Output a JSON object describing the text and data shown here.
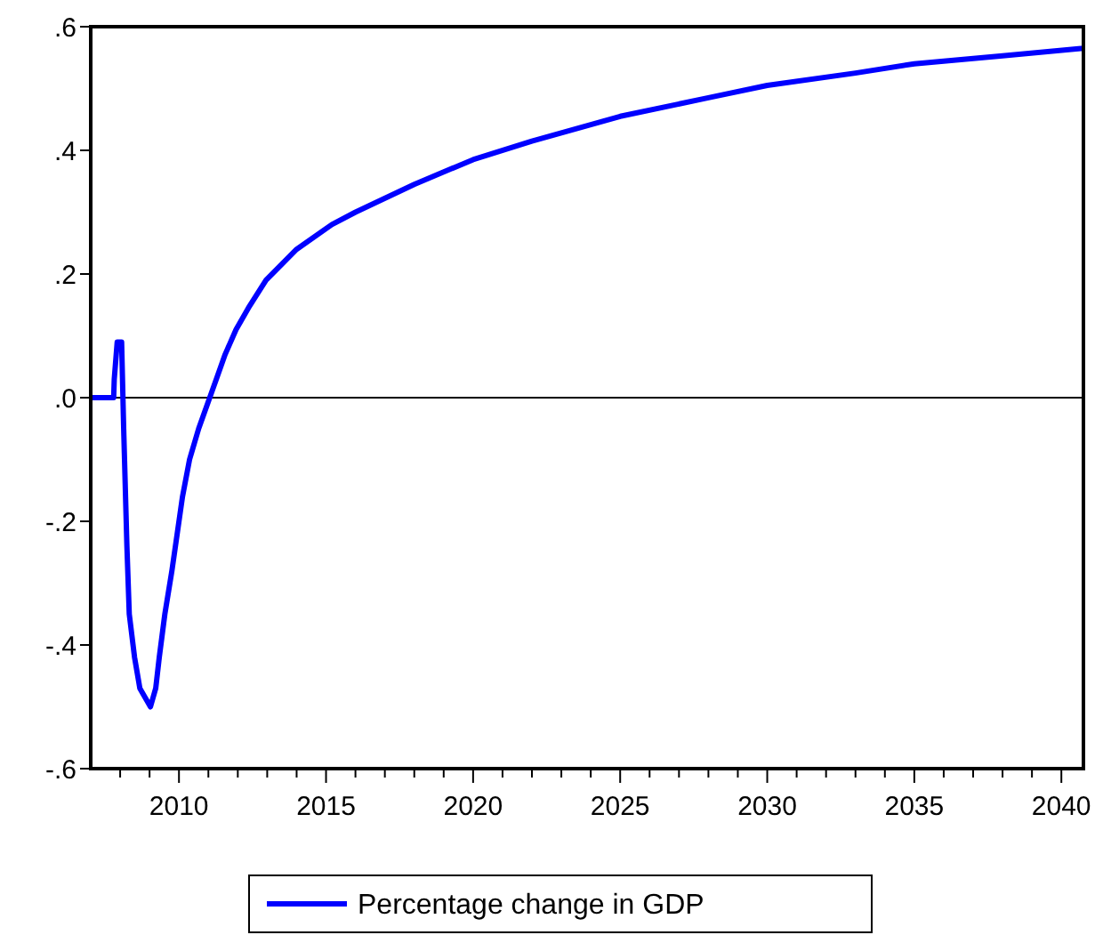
{
  "chart_data": {
    "type": "line",
    "xlim": [
      2007,
      2040.75
    ],
    "ylim": [
      -0.6,
      0.6
    ],
    "xticks": [
      {
        "value": 2008,
        "label": null
      },
      {
        "value": 2009,
        "label": null
      },
      2010,
      {
        "value": 2011,
        "label": null
      },
      {
        "value": 2012,
        "label": null
      },
      {
        "value": 2013,
        "label": null
      },
      {
        "value": 2014,
        "label": null
      },
      2015,
      {
        "value": 2016,
        "label": null
      },
      {
        "value": 2017,
        "label": null
      },
      {
        "value": 2018,
        "label": null
      },
      {
        "value": 2019,
        "label": null
      },
      2020,
      {
        "value": 2021,
        "label": null
      },
      {
        "value": 2022,
        "label": null
      },
      {
        "value": 2023,
        "label": null
      },
      {
        "value": 2024,
        "label": null
      },
      2025,
      {
        "value": 2026,
        "label": null
      },
      {
        "value": 2027,
        "label": null
      },
      {
        "value": 2028,
        "label": null
      },
      {
        "value": 2029,
        "label": null
      },
      2030,
      {
        "value": 2031,
        "label": null
      },
      {
        "value": 2032,
        "label": null
      },
      {
        "value": 2033,
        "label": null
      },
      {
        "value": 2034,
        "label": null
      },
      2035,
      {
        "value": 2036,
        "label": null
      },
      {
        "value": 2037,
        "label": null
      },
      {
        "value": 2038,
        "label": null
      },
      {
        "value": 2039,
        "label": null
      },
      2040
    ],
    "yticks": [
      {
        "value": -0.6,
        "label": "-.6"
      },
      {
        "value": -0.4,
        "label": "-.4"
      },
      {
        "value": -0.2,
        "label": "-.2"
      },
      {
        "value": 0,
        "label": ".0"
      },
      {
        "value": 0.2,
        "label": ".2"
      },
      {
        "value": 0.4,
        "label": ".4"
      },
      {
        "value": 0.6,
        "label": ".6"
      }
    ],
    "grid": false,
    "legend": "bottom",
    "line_style": "solid",
    "marker": "none",
    "ref_lines": [
      {
        "axis": "y",
        "value": 0,
        "color": "#000000"
      }
    ],
    "series": [
      {
        "name": "Percentage change in GDP",
        "color": "#0000ff",
        "x": [
          2007,
          2007.78,
          2007.8,
          2007.9,
          2008.05,
          2008.12,
          2008.23,
          2008.31,
          2008.49,
          2008.67,
          2009.03,
          2009.21,
          2009.33,
          2009.52,
          2009.76,
          2009.94,
          2010.12,
          2010.36,
          2010.67,
          2010.97,
          2011.27,
          2011.57,
          2011.94,
          2012.36,
          2012.96,
          2014,
          2015.2,
          2016,
          2018,
          2020,
          2022,
          2025,
          2028,
          2030,
          2033,
          2035,
          2038,
          2040.75
        ],
        "values": [
          0,
          0,
          0.03,
          0.09,
          0.09,
          -0.05,
          -0.24,
          -0.35,
          -0.42,
          -0.47,
          -0.5,
          -0.47,
          -0.42,
          -0.35,
          -0.28,
          -0.22,
          -0.16,
          -0.1,
          -0.05,
          -0.01,
          0.03,
          0.07,
          0.11,
          0.145,
          0.19,
          0.24,
          0.28,
          0.3,
          0.345,
          0.385,
          0.415,
          0.455,
          0.485,
          0.505,
          0.525,
          0.54,
          0.553,
          0.565
        ]
      }
    ]
  }
}
